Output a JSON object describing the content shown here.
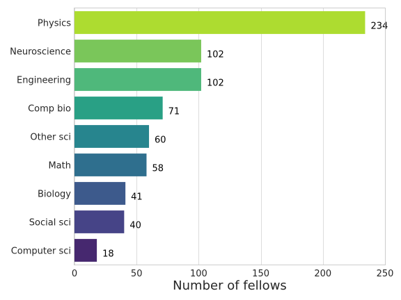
{
  "chart_data": {
    "type": "bar",
    "orientation": "horizontal",
    "categories": [
      "Physics",
      "Neuroscience",
      "Engineering",
      "Comp bio",
      "Other sci",
      "Math",
      "Biology",
      "Social sci",
      "Computer sci"
    ],
    "values": [
      234,
      102,
      102,
      71,
      60,
      58,
      41,
      40,
      18
    ],
    "colors": [
      "#addc30",
      "#7ac65a",
      "#4fb87b",
      "#29a085",
      "#27858e",
      "#2f6f8e",
      "#3d5a8c",
      "#464487",
      "#46286f"
    ],
    "title": "",
    "xlabel": "Number of fellows",
    "ylabel": "",
    "xlim": [
      0,
      250
    ],
    "xticks": [
      0,
      50,
      100,
      150,
      200,
      250
    ],
    "grid": "vertical",
    "data_labels": true
  }
}
